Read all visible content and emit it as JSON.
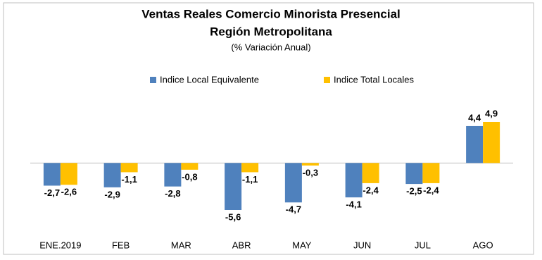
{
  "chart_data": {
    "type": "bar",
    "title": "Ventas Reales Comercio Minorista Presencial",
    "subtitle": "Región Metropolitana",
    "note": "(% Variación Anual)",
    "categories": [
      "ENE.2019",
      "FEB",
      "MAR",
      "ABR",
      "MAY",
      "JUN",
      "JUL",
      "AGO"
    ],
    "series": [
      {
        "name": "Indice Local Equivalente",
        "color": "#4f81bd",
        "values": [
          -2.7,
          -2.9,
          -2.8,
          -5.6,
          -4.7,
          -4.1,
          -2.5,
          4.4
        ],
        "value_labels": [
          "-2,7",
          "-2,9",
          "-2,8",
          "-5,6",
          "-4,7",
          "-4,1",
          "-2,5",
          "4,4"
        ]
      },
      {
        "name": "Indice Total Locales",
        "color": "#ffc000",
        "values": [
          -2.6,
          -1.1,
          -0.8,
          -1.1,
          -0.3,
          -2.4,
          -2.4,
          4.9
        ],
        "value_labels": [
          "-2,6",
          "-1,1",
          "-0,8",
          "-1,1",
          "-0,3",
          "-2,4",
          "-2,4",
          "4,9"
        ]
      }
    ]
  }
}
